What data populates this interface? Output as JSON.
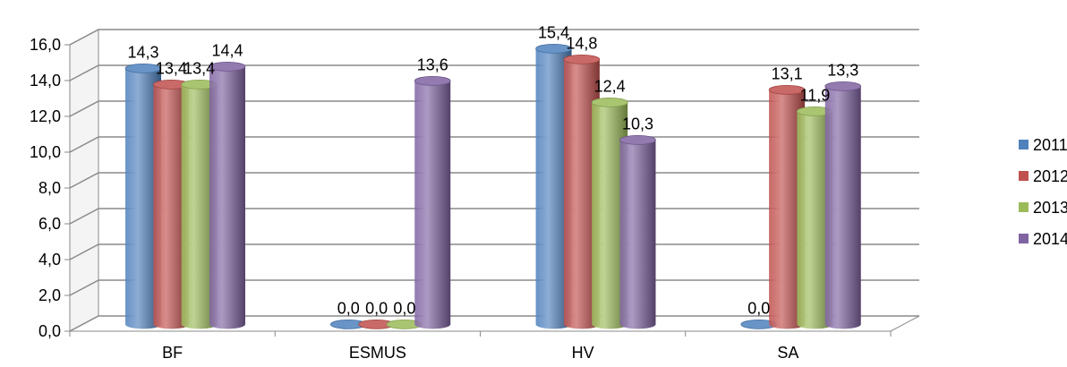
{
  "chart_data": {
    "type": "bar",
    "style": "3d-cylinder",
    "categories": [
      "BF",
      "ESMUS",
      "HV",
      "SA"
    ],
    "series": [
      {
        "name": "2011",
        "color": "#4F81BD",
        "values": [
          14.3,
          0.0,
          15.4,
          0.0
        ]
      },
      {
        "name": "2012",
        "color": "#C0504D",
        "values": [
          13.4,
          0.0,
          14.8,
          13.1
        ]
      },
      {
        "name": "2013",
        "color": "#9BBB59",
        "values": [
          13.4,
          0.0,
          12.4,
          11.9
        ]
      },
      {
        "name": "2014",
        "color": "#8064A2",
        "values": [
          14.4,
          13.6,
          10.3,
          13.3
        ]
      }
    ],
    "data_labels": [
      [
        "14,3",
        "0,0",
        "15,4",
        "0,0"
      ],
      [
        "13,4",
        "0,0",
        "14,8",
        "13,1"
      ],
      [
        "13,4",
        "0,0",
        "12,4",
        "11,9"
      ],
      [
        "14,4",
        "13,6",
        "10,3",
        "13,3"
      ]
    ],
    "y_ticks": [
      "0,0",
      "2,0",
      "4,0",
      "6,0",
      "8,0",
      "10,0",
      "12,0",
      "14,0",
      "16,0"
    ],
    "ylim": [
      0,
      16
    ],
    "grid": true,
    "legend_position": "right",
    "title": "",
    "xlabel": "",
    "ylabel": ""
  }
}
